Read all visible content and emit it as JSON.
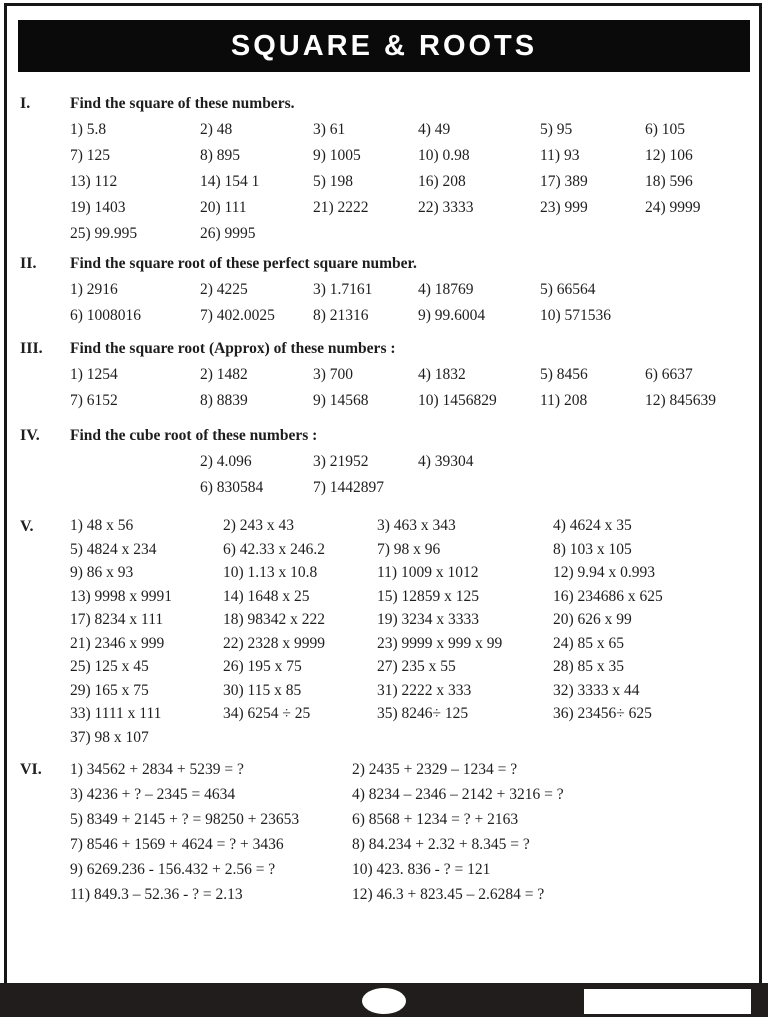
{
  "page": {
    "title": "SQUARE & ROOTS"
  },
  "sections": [
    {
      "label": "I.",
      "heading": "Find the square of these numbers.",
      "rows": [
        [
          "1) 5.8",
          "2) 48",
          "3) 61",
          "4) 49",
          "5) 95",
          "6) 105"
        ],
        [
          "7) 125",
          "8) 895",
          "9) 1005",
          "10) 0.98",
          "11) 93",
          "12) 106"
        ],
        [
          "13) 112",
          "14) 154 1",
          "5) 198",
          "16) 208",
          "17) 389",
          "18) 596"
        ],
        [
          "19) 1403",
          "20) 111",
          "21) 2222",
          "22) 3333",
          "23) 999",
          "24) 9999"
        ],
        [
          "25) 99.995",
          "26) 9995"
        ]
      ]
    },
    {
      "label": "II.",
      "heading": "Find the square root of these perfect square number.",
      "rows": [
        [
          "1) 2916",
          "2) 4225",
          "3) 1.7161",
          "4) 18769",
          "5) 66564"
        ],
        [
          "6) 1008016",
          "7) 402.0025",
          "8) 21316",
          "9) 99.6004",
          "10) 571536"
        ]
      ]
    },
    {
      "label": "III.",
      "heading": "Find the square root (Approx) of these numbers :",
      "rows": [
        [
          "1) 1254",
          "2) 1482",
          "3) 700",
          "4) 1832",
          "5) 8456",
          "6) 6637"
        ],
        [
          "7) 6152",
          "8) 8839",
          "9) 14568",
          "10) 1456829",
          "11) 208",
          "12) 845639"
        ]
      ]
    },
    {
      "label": "IV.",
      "heading": "Find the cube root of these numbers :",
      "rows": [
        [
          "",
          "2) 4.096",
          "3) 21952",
          "4) 39304"
        ],
        [
          "",
          "6) 830584",
          "7) 1442897"
        ]
      ]
    },
    {
      "label": "V.",
      "heading": "",
      "rows": [
        [
          "1) 48 x 56",
          "2) 243 x 43",
          "3) 463 x 343",
          "4) 4624 x 35"
        ],
        [
          "5) 4824 x 234",
          "6) 42.33 x 246.2",
          "7) 98 x 96",
          "8) 103 x 105"
        ],
        [
          "9) 86 x 93",
          "10) 1.13 x 10.8",
          "11) 1009 x 1012",
          "12) 9.94 x 0.993"
        ],
        [
          "13) 9998 x 9991",
          "14) 1648 x 25",
          "15) 12859 x 125",
          "16) 234686 x 625"
        ],
        [
          "17) 8234 x 111",
          "18) 98342 x 222",
          "19) 3234 x 3333",
          "20) 626 x 99"
        ],
        [
          "21) 2346 x 999",
          "22) 2328 x 9999",
          "23) 9999 x 999 x 99",
          "24) 85 x 65"
        ],
        [
          "25) 125 x 45",
          "26) 195 x 75",
          "27) 235 x 55",
          "28) 85 x 35"
        ],
        [
          "29) 165 x 75",
          "30) 115 x 85",
          "31) 2222 x 333",
          "32) 3333 x 44"
        ],
        [
          "33) 1111 x 111",
          "34) 6254 ÷ 25",
          "35) 8246÷ 125",
          "36) 23456÷ 625"
        ],
        [
          "37) 98 x 107"
        ]
      ]
    },
    {
      "label": "VI.",
      "heading": "",
      "rows": [
        [
          "1) 34562 + 2834 + 5239 = ?",
          "2) 2435 + 2329 – 1234 = ?"
        ],
        [
          "3) 4236 + ? – 2345 = 4634",
          "4) 8234 – 2346 – 2142 + 3216 = ?"
        ],
        [
          "5) 8349 + 2145 + ? = 98250 + 23653",
          "6) 8568 + 1234 = ? + 2163"
        ],
        [
          "7) 8546 + 1569 + 4624 = ? + 3436",
          "8) 84.234 + 2.32 + 8.345 = ?"
        ],
        [
          "9) 6269.236 - 156.432 + 2.56 = ?",
          "10) 423. 836 - ? = 121"
        ],
        [
          "11) 849.3 – 52.36 - ? = 2.13",
          "12) 46.3 + 823.45 – 2.6284 = ?"
        ]
      ]
    }
  ],
  "footer": {
    "home_icon": "oval-home-indicator",
    "panel": "blank-white-panel"
  },
  "colors": {
    "header_bg": "#0a0a0a",
    "footer_bg": "#211d1d",
    "text": "#1e1e1e",
    "page_bg": "#ffffff"
  }
}
